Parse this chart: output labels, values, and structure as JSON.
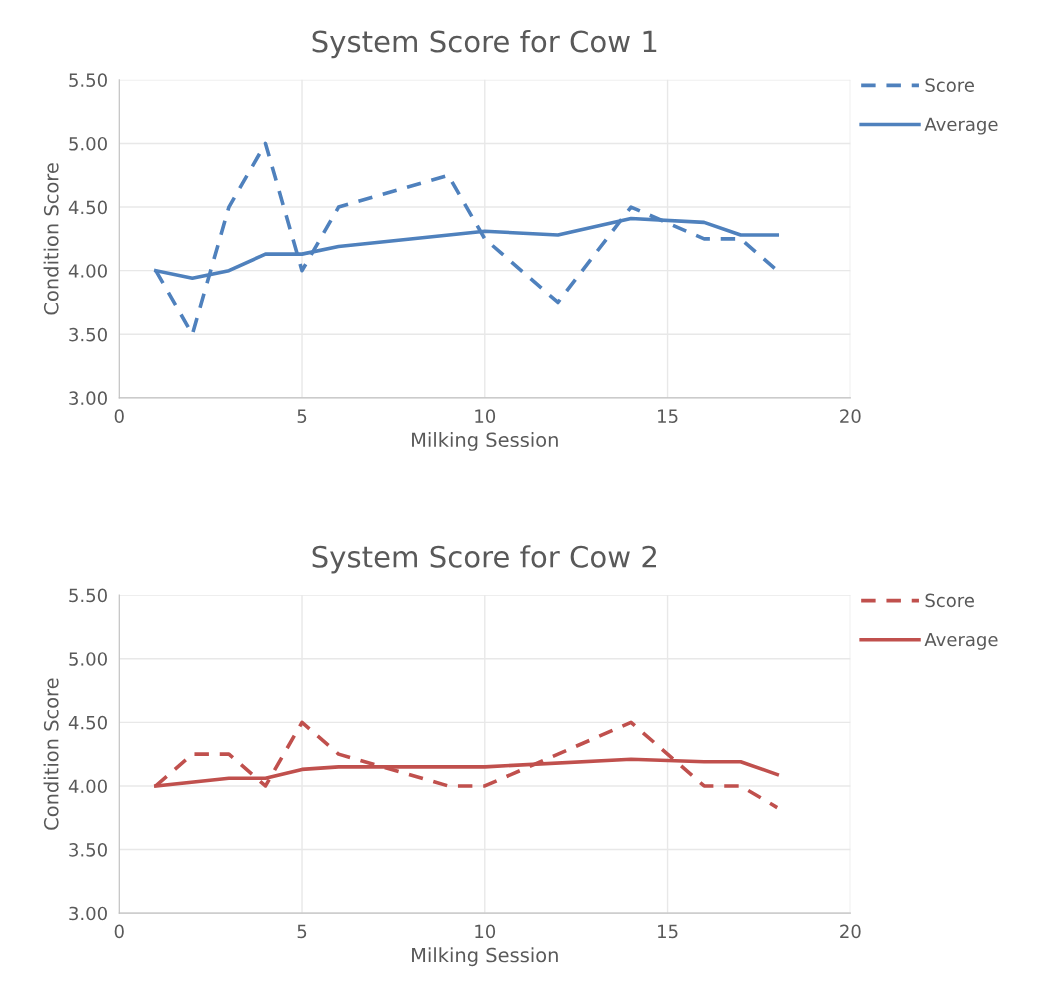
{
  "chart_data": [
    {
      "type": "line",
      "title": "System Score for Cow 1",
      "xlabel": "Milking Session",
      "ylabel": "Condition Score",
      "xlim": [
        0,
        20
      ],
      "xticks": [
        0,
        5,
        10,
        15,
        20
      ],
      "ylim": [
        3.0,
        5.5
      ],
      "yticks": [
        {
          "value": 3.0,
          "label": "3.00"
        },
        {
          "value": 3.5,
          "label": "3.50"
        },
        {
          "value": 4.0,
          "label": "4.00"
        },
        {
          "value": 4.5,
          "label": "4.50"
        },
        {
          "value": 5.0,
          "label": "5.00"
        },
        {
          "value": 5.5,
          "label": "5.50"
        }
      ],
      "grid": true,
      "legend": "top right",
      "series": [
        {
          "name": "Score",
          "color": "#4f81bd",
          "line_style": "dashed",
          "x": [
            1,
            2,
            3,
            4,
            5,
            6,
            9,
            10,
            12,
            14,
            16,
            17,
            18
          ],
          "values": [
            4.0,
            3.5,
            4.5,
            5.0,
            4.0,
            4.5,
            4.75,
            4.25,
            3.75,
            4.5,
            4.25,
            4.25,
            4.0
          ]
        },
        {
          "name": "Average",
          "color": "#4f81bd",
          "line_style": "solid",
          "x": [
            1,
            2,
            3,
            4,
            5,
            6,
            10,
            12,
            14,
            16,
            17,
            18
          ],
          "values": [
            4.0,
            3.94,
            4.0,
            4.13,
            4.13,
            4.19,
            4.31,
            4.28,
            4.41,
            4.38,
            4.28,
            4.28
          ]
        }
      ]
    },
    {
      "type": "line",
      "title": "System Score for Cow 2",
      "xlabel": "Milking Session",
      "ylabel": "Condition Score",
      "xlim": [
        0,
        20
      ],
      "xticks": [
        0,
        5,
        10,
        15,
        20
      ],
      "ylim": [
        3.0,
        5.5
      ],
      "yticks": [
        {
          "value": 3.0,
          "label": "3.00"
        },
        {
          "value": 3.5,
          "label": "3.50"
        },
        {
          "value": 4.0,
          "label": "4.00"
        },
        {
          "value": 4.5,
          "label": "4.50"
        },
        {
          "value": 5.0,
          "label": "5.00"
        },
        {
          "value": 5.5,
          "label": "5.50"
        }
      ],
      "grid": true,
      "legend": "top right",
      "series": [
        {
          "name": "Score",
          "color": "#c0504d",
          "line_style": "dashed",
          "x": [
            1,
            2,
            3,
            4,
            5,
            6,
            9,
            10,
            14,
            16,
            17,
            18
          ],
          "values": [
            4.0,
            4.25,
            4.25,
            4.0,
            4.5,
            4.25,
            4.0,
            4.0,
            4.5,
            4.0,
            4.0,
            3.83
          ]
        },
        {
          "name": "Average",
          "color": "#c0504d",
          "line_style": "solid",
          "x": [
            1,
            3,
            4,
            5,
            6,
            10,
            14,
            16,
            17,
            18
          ],
          "values": [
            4.0,
            4.06,
            4.06,
            4.13,
            4.15,
            4.15,
            4.21,
            4.19,
            4.19,
            4.09
          ]
        }
      ]
    }
  ]
}
